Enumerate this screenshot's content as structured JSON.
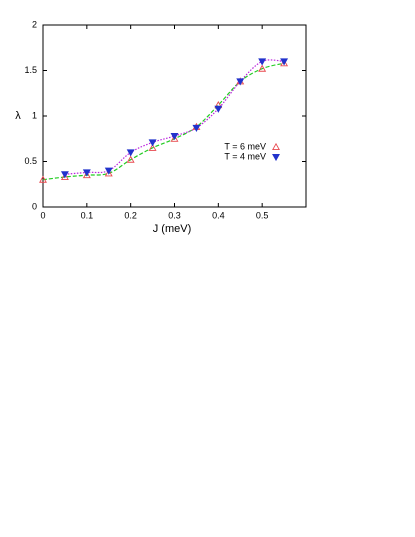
{
  "chart_data": {
    "type": "line",
    "x": [
      0,
      0.05,
      0.1,
      0.15,
      0.2,
      0.25,
      0.3,
      0.35,
      0.4,
      0.45,
      0.5,
      0.55
    ],
    "x_label": "J (meV)",
    "y_label": "λ",
    "xlim": [
      0,
      0.6
    ],
    "xticks": [
      0,
      0.1,
      0.2,
      0.3,
      0.4,
      0.5
    ],
    "ylim": [
      0,
      2
    ],
    "yticks": [
      0,
      0.5,
      1,
      1.5,
      2
    ],
    "legend": "right",
    "series": [
      {
        "name": "T = 6 meV",
        "color": "#e8484f",
        "line_color": "#22cc22",
        "line_dash": "dashed",
        "marker": "triangle-up-open",
        "values": [
          0.3,
          0.33,
          0.35,
          0.37,
          0.52,
          0.65,
          0.75,
          0.88,
          1.12,
          1.38,
          1.52,
          1.58
        ]
      },
      {
        "name": "T = 4 meV",
        "color": "#2233cc",
        "line_color": "#bb22dd",
        "line_dash": "dotted",
        "marker": "triangle-down-filled",
        "values": [
          null,
          0.36,
          0.38,
          0.4,
          0.6,
          0.71,
          0.78,
          0.87,
          1.08,
          1.38,
          1.6,
          1.6
        ]
      }
    ]
  }
}
